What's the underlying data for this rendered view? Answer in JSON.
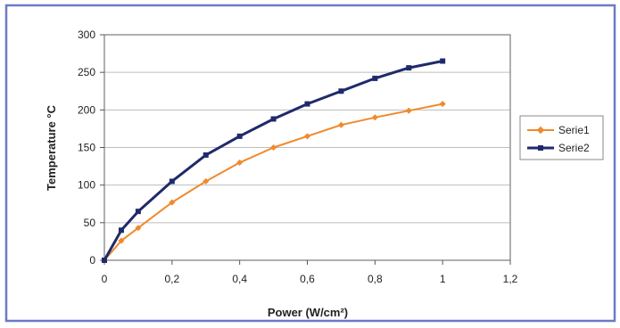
{
  "chart_data": {
    "type": "line",
    "xlabel": "Power (W/cm²)",
    "ylabel": "Temperature °C",
    "xlim": [
      0,
      1.2
    ],
    "ylim": [
      0,
      300
    ],
    "x_ticks": [
      0,
      0.2,
      0.4,
      0.6,
      0.8,
      1,
      1.2
    ],
    "x_tick_labels": [
      "0",
      "0,2",
      "0,4",
      "0,6",
      "0,8",
      "1",
      "1,2"
    ],
    "y_ticks": [
      0,
      50,
      100,
      150,
      200,
      250,
      300
    ],
    "y_tick_labels": [
      "0",
      "50",
      "100",
      "150",
      "200",
      "250",
      "300"
    ],
    "grid": "horizontal",
    "legend_position": "right",
    "series": [
      {
        "name": "Serie1",
        "color": "#f08a2c",
        "marker": "diamond",
        "x": [
          0,
          0.05,
          0.1,
          0.2,
          0.3,
          0.4,
          0.5,
          0.6,
          0.7,
          0.8,
          0.9,
          1
        ],
        "y": [
          0,
          26,
          43,
          77,
          105,
          130,
          150,
          165,
          180,
          190,
          199,
          208
        ]
      },
      {
        "name": "Serie2",
        "color": "#1f2a6b",
        "marker": "square",
        "x": [
          0,
          0.05,
          0.1,
          0.2,
          0.3,
          0.4,
          0.5,
          0.6,
          0.7,
          0.8,
          0.9,
          1
        ],
        "y": [
          0,
          40,
          65,
          105,
          140,
          165,
          188,
          208,
          225,
          242,
          256,
          265
        ]
      }
    ]
  },
  "colors": {
    "frame_border": "#6c7ac4",
    "plot_border": "#7a7a7a",
    "gridline": "#bdbdbd",
    "text": "#222222"
  }
}
